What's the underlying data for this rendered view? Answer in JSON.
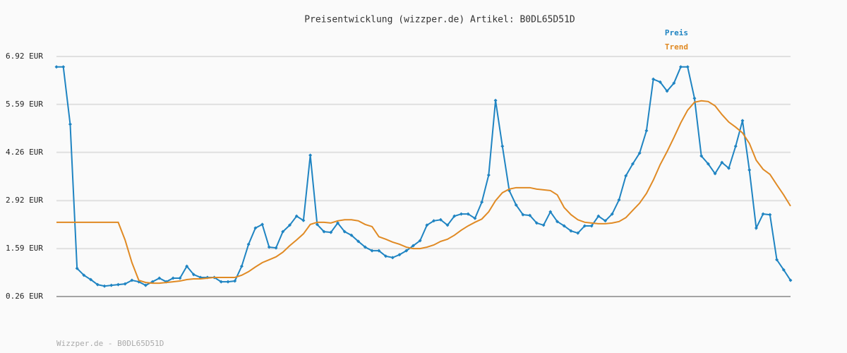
{
  "chart_data": {
    "type": "line",
    "title": "Preisentwicklung (wizzper.de) Artikel: B0DL65D51D",
    "footer": "Wizzper.de - B0DL65D51D",
    "categories": [
      null,
      null,
      null,
      null,
      null,
      null,
      null,
      null,
      null,
      null,
      null,
      null,
      null,
      null,
      null,
      null,
      null,
      null,
      null,
      null,
      null,
      null,
      null,
      null,
      null,
      null,
      null,
      null,
      null,
      null,
      null,
      null,
      null,
      null,
      null,
      null,
      null,
      null,
      null,
      null,
      null,
      null,
      null,
      null,
      null,
      null,
      null,
      null,
      null,
      null,
      null,
      null,
      null,
      null,
      null,
      null,
      null,
      null,
      null,
      null,
      null,
      null,
      null,
      null,
      null,
      null,
      null,
      null,
      null,
      null,
      null,
      null,
      null,
      null,
      null,
      null,
      null,
      null,
      null,
      null,
      null,
      null,
      null,
      null,
      null,
      null,
      null,
      null,
      null,
      null,
      null,
      null,
      null,
      null,
      null,
      null,
      null,
      null,
      null,
      null,
      null,
      null,
      null,
      null,
      null,
      null,
      null,
      null
    ],
    "series": [
      {
        "name": "Preis",
        "color": "#1f84c2",
        "markers": true,
        "values": [
          6.63,
          6.63,
          5.04,
          1.04,
          0.85,
          0.73,
          0.59,
          0.55,
          0.57,
          0.59,
          0.61,
          0.71,
          0.67,
          0.57,
          0.67,
          0.77,
          0.67,
          0.77,
          0.77,
          1.1,
          0.87,
          0.79,
          0.79,
          0.79,
          0.67,
          0.67,
          0.69,
          1.1,
          1.71,
          2.16,
          2.26,
          1.63,
          1.61,
          2.06,
          2.24,
          2.49,
          2.37,
          4.18,
          2.26,
          2.06,
          2.04,
          2.3,
          2.06,
          1.96,
          1.79,
          1.63,
          1.53,
          1.53,
          1.38,
          1.34,
          1.42,
          1.53,
          1.67,
          1.81,
          2.24,
          2.36,
          2.39,
          2.24,
          2.49,
          2.55,
          2.55,
          2.43,
          2.88,
          3.63,
          5.7,
          4.43,
          3.2,
          2.8,
          2.53,
          2.51,
          2.3,
          2.24,
          2.61,
          2.34,
          2.22,
          2.08,
          2.02,
          2.22,
          2.22,
          2.49,
          2.36,
          2.55,
          2.94,
          3.61,
          3.94,
          4.24,
          4.86,
          6.29,
          6.21,
          5.96,
          6.18,
          6.63,
          6.63,
          5.76,
          4.16,
          3.94,
          3.67,
          3.98,
          3.82,
          4.43,
          5.14,
          3.77,
          2.16,
          2.55,
          2.53,
          1.28,
          1.0,
          0.71
        ]
      },
      {
        "name": "Trend",
        "color": "#e08a24",
        "markers": false,
        "values": [
          2.32,
          2.32,
          2.32,
          2.32,
          2.32,
          2.32,
          2.32,
          2.32,
          2.32,
          2.32,
          1.83,
          1.2,
          0.71,
          0.65,
          0.63,
          0.63,
          0.65,
          0.67,
          0.69,
          0.73,
          0.75,
          0.75,
          0.77,
          0.79,
          0.79,
          0.79,
          0.79,
          0.85,
          0.95,
          1.08,
          1.2,
          1.28,
          1.36,
          1.49,
          1.67,
          1.83,
          2.0,
          2.26,
          2.32,
          2.32,
          2.3,
          2.36,
          2.39,
          2.39,
          2.36,
          2.26,
          2.2,
          1.92,
          1.85,
          1.77,
          1.71,
          1.63,
          1.59,
          1.59,
          1.63,
          1.69,
          1.79,
          1.85,
          1.96,
          2.1,
          2.22,
          2.32,
          2.41,
          2.61,
          2.92,
          3.14,
          3.24,
          3.28,
          3.28,
          3.28,
          3.24,
          3.22,
          3.2,
          3.08,
          2.73,
          2.53,
          2.39,
          2.32,
          2.3,
          2.28,
          2.28,
          2.3,
          2.34,
          2.45,
          2.65,
          2.85,
          3.12,
          3.49,
          3.92,
          4.28,
          4.67,
          5.08,
          5.43,
          5.65,
          5.69,
          5.67,
          5.55,
          5.31,
          5.1,
          4.96,
          4.8,
          4.51,
          4.04,
          3.79,
          3.65,
          3.36,
          3.08,
          2.77
        ]
      }
    ],
    "ylim": [
      0.26,
      6.92
    ],
    "yticks": [
      {
        "value": 0.26,
        "label": "0.26 EUR"
      },
      {
        "value": 1.59,
        "label": "1.59 EUR"
      },
      {
        "value": 2.92,
        "label": "2.92 EUR"
      },
      {
        "value": 4.26,
        "label": "4.26 EUR"
      },
      {
        "value": 5.59,
        "label": "5.59 EUR"
      },
      {
        "value": 6.92,
        "label": "6.92 EUR"
      }
    ],
    "grid": true,
    "legend": "top-right"
  }
}
